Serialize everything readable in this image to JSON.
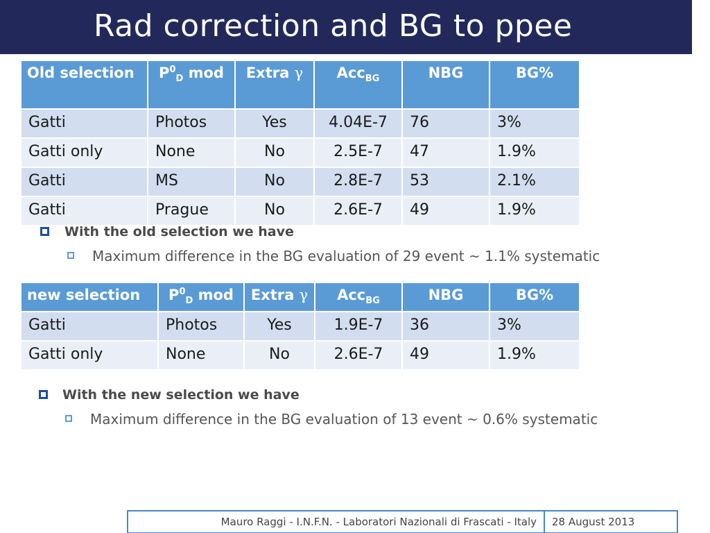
{
  "title": "Rad correction and BG to ppee",
  "table1": {
    "headers": {
      "selection": "Old selection",
      "p0_base": "P",
      "p0_sup": "0",
      "p0_sub": "D",
      "p0_rest": " mod",
      "extra_text": "Extra ",
      "extra_symbol": "γ",
      "acc_base": "Acc",
      "acc_sub": "BG",
      "nbg": "NBG",
      "bgpct": "BG%"
    },
    "rows": [
      {
        "selection": "Gatti",
        "p0": "Photos",
        "extra": "Yes",
        "acc": "4.04E-7",
        "nbg": "76",
        "bgpct": "3%"
      },
      {
        "selection": "Gatti only",
        "p0": "None",
        "extra": "No",
        "acc": "2.5E-7",
        "nbg": "47",
        "bgpct": "1.9%"
      },
      {
        "selection": "Gatti",
        "p0": "MS",
        "extra": "No",
        "acc": "2.8E-7",
        "nbg": "53",
        "bgpct": "2.1%"
      },
      {
        "selection": "Gatti",
        "p0": "Prague",
        "extra": "No",
        "acc": "2.6E-7",
        "nbg": "49",
        "bgpct": "1.9%"
      }
    ]
  },
  "bullets1": {
    "main": "With the old selection we have",
    "sub": "Maximum difference in the BG evaluation of 29 event ~ 1.1% systematic"
  },
  "table2": {
    "headers": {
      "selection": "new selection",
      "p0_base": "P",
      "p0_sup": "0",
      "p0_sub": "D",
      "p0_rest": " mod",
      "extra_text": "Extra ",
      "extra_symbol": "γ",
      "acc_base": "Acc",
      "acc_sub": "BG",
      "nbg": "NBG",
      "bgpct": "BG%"
    },
    "rows": [
      {
        "selection": "Gatti",
        "p0": "Photos",
        "extra": "Yes",
        "acc": "1.9E-7",
        "nbg": "36",
        "bgpct": "3%"
      },
      {
        "selection": "Gatti only",
        "p0": "None",
        "extra": "No",
        "acc": "2.6E-7",
        "nbg": "49",
        "bgpct": "1.9%"
      }
    ]
  },
  "bullets2": {
    "main": "With the new selection we have",
    "sub": "Maximum difference in the BG evaluation of 13 event ~ 0.6% systematic"
  },
  "footer": {
    "author": "Mauro Raggi - I.N.F.N. - Laboratori Nazionali di Frascati - Italy",
    "date": "28 August 2013"
  },
  "colors": {
    "title_bar": "#22295a",
    "header_blue": "#5b9bd5",
    "row_dark": "#d2deef",
    "row_light": "#eaeff7"
  }
}
